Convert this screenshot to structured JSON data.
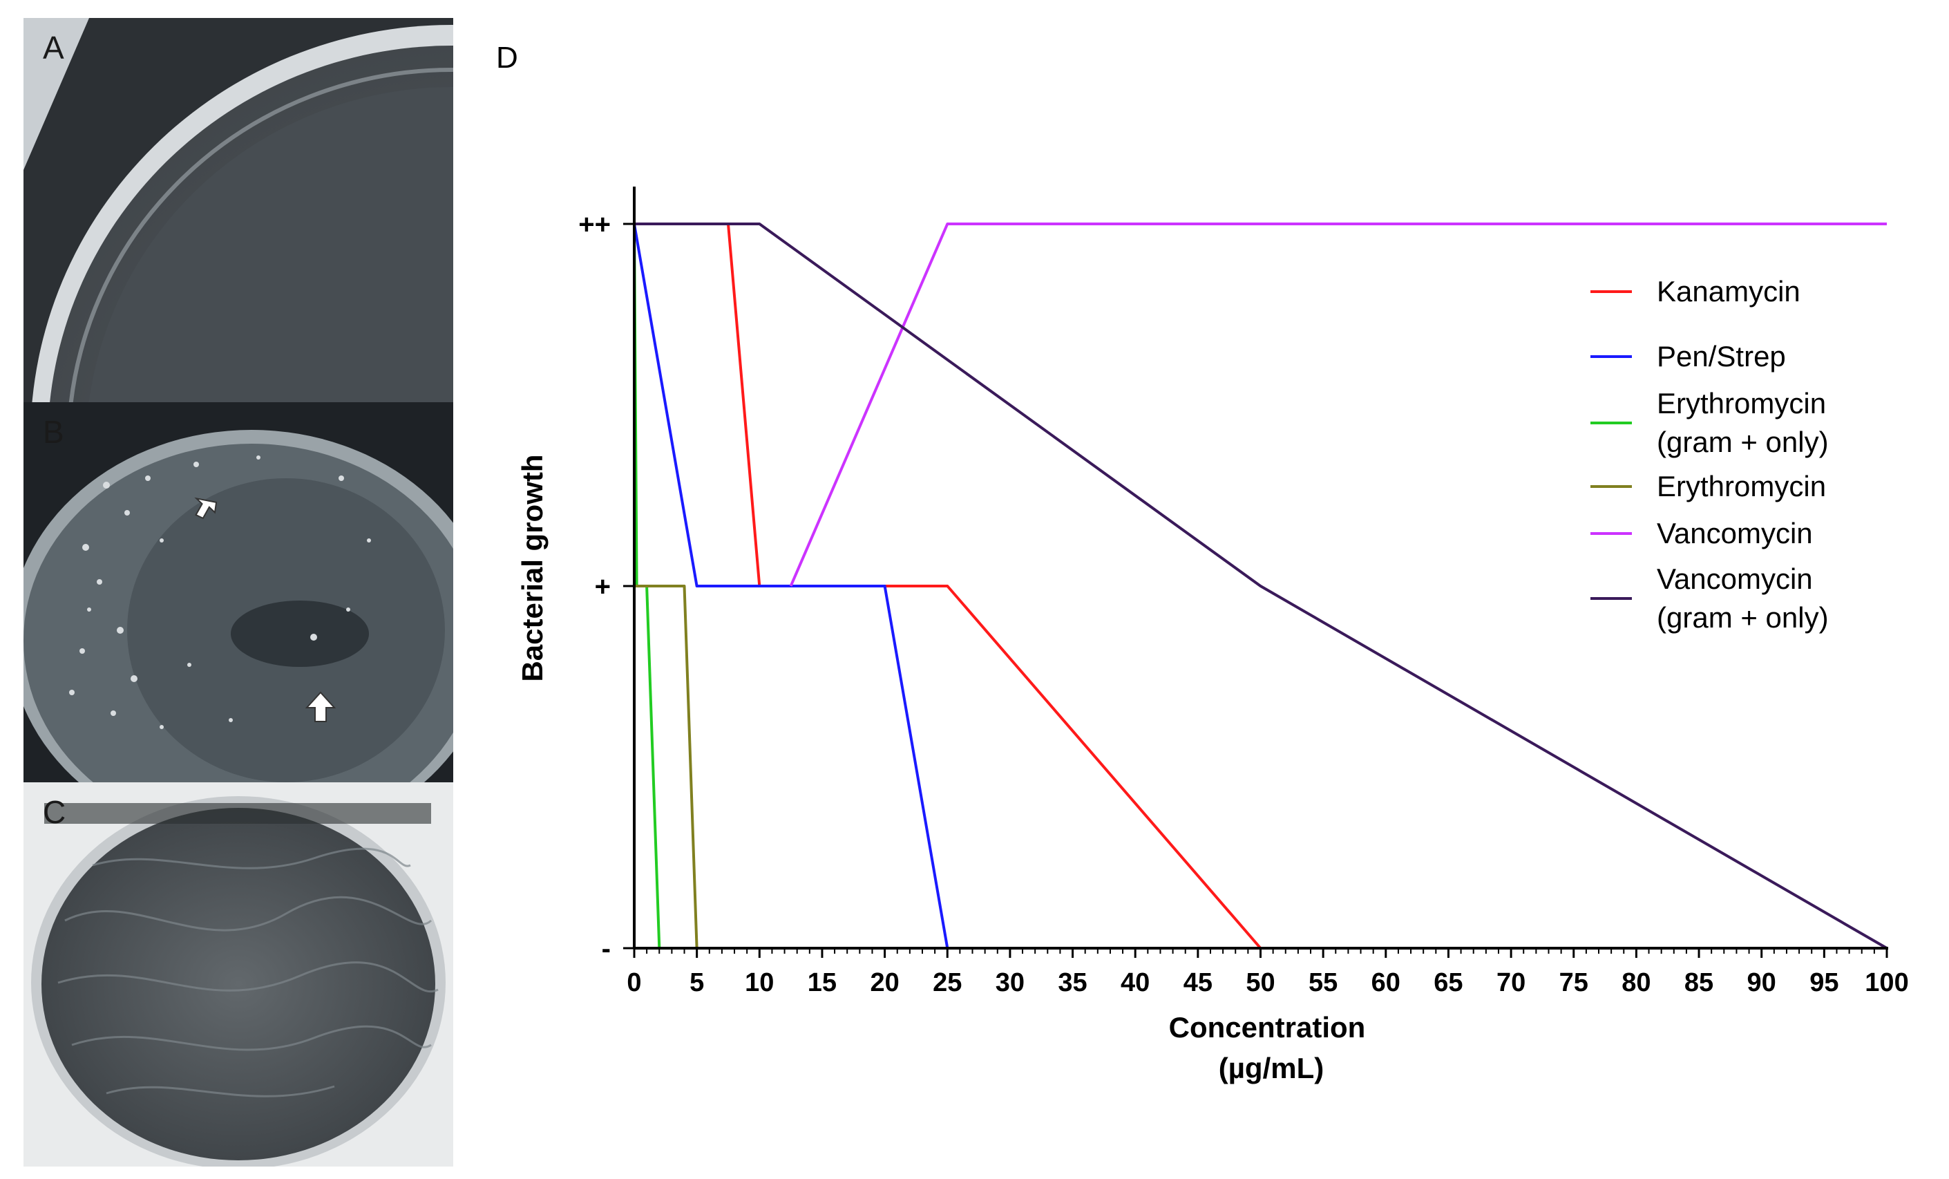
{
  "panels": {
    "a": {
      "letter": "A"
    },
    "b": {
      "letter": "B"
    },
    "c": {
      "letter": "C"
    },
    "d": {
      "letter": "D"
    }
  },
  "chart_data": {
    "type": "line",
    "title": "",
    "xlabel": "Concentration",
    "xlabel_units": "(µg/mL)",
    "ylabel": "Bacterial growth",
    "xlim": [
      0,
      100
    ],
    "x_ticks": [
      0,
      5,
      10,
      15,
      20,
      25,
      30,
      35,
      40,
      45,
      50,
      55,
      60,
      65,
      70,
      75,
      80,
      85,
      90,
      95,
      100
    ],
    "x_tick_labels": [
      "0",
      "5",
      "10",
      "15",
      "20",
      "25",
      "30",
      "35",
      "40",
      "45",
      "50",
      "55",
      "60",
      "65",
      "70",
      "75",
      "80",
      "85",
      "90",
      "95",
      "100"
    ],
    "y_levels": [
      0,
      1,
      2
    ],
    "y_tick_labels": [
      "-",
      "+",
      "++"
    ],
    "legend_position": "top-right",
    "series": [
      {
        "name": "Kanamycin",
        "color": "#ff1a1a",
        "points": [
          [
            0,
            2
          ],
          [
            7.5,
            2
          ],
          [
            10,
            1
          ],
          [
            25,
            1
          ],
          [
            50,
            0
          ],
          [
            100,
            0
          ]
        ]
      },
      {
        "name": "Pen/Strep",
        "color": "#1a1aff",
        "points": [
          [
            0,
            2
          ],
          [
            5,
            1
          ],
          [
            20,
            1
          ],
          [
            25,
            0
          ],
          [
            100,
            0
          ]
        ]
      },
      {
        "name": "Erythromycin (gram + only)",
        "name_line1": "Erythromycin",
        "name_line2": "(gram + only)",
        "color": "#22cc22",
        "points": [
          [
            0,
            2
          ],
          [
            0.2,
            1
          ],
          [
            1,
            1
          ],
          [
            2,
            0
          ],
          [
            100,
            0
          ]
        ]
      },
      {
        "name": "Erythromycin",
        "color": "#808020",
        "points": [
          [
            0,
            1
          ],
          [
            4,
            1
          ],
          [
            5,
            0
          ],
          [
            100,
            0
          ]
        ]
      },
      {
        "name": "Vancomycin",
        "color": "#cc33ff",
        "points": [
          [
            12.5,
            1
          ],
          [
            25,
            2
          ],
          [
            100,
            2
          ]
        ]
      },
      {
        "name": "Vancomycin (gram + only)",
        "name_line1": "Vancomycin",
        "name_line2": "(gram + only)",
        "color": "#3a1a5a",
        "points": [
          [
            0,
            2
          ],
          [
            10,
            2
          ],
          [
            50,
            1
          ],
          [
            100,
            0
          ]
        ]
      }
    ]
  }
}
